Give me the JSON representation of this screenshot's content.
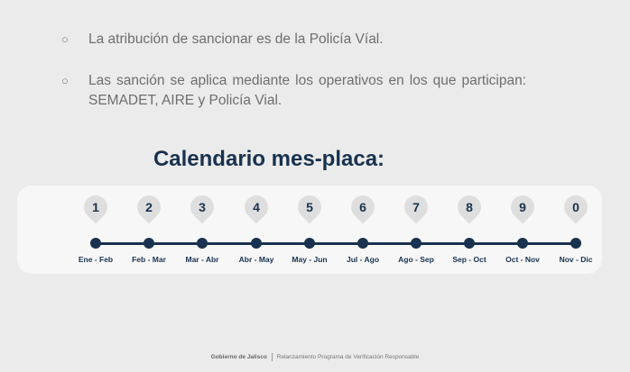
{
  "bullets": [
    {
      "marker": "○",
      "text": "La atribución de sancionar es de la Policía Víal."
    },
    {
      "marker": "○",
      "text": "Las sanción se aplica mediante los operativos en los que participan: SEMADET, AIRE y Policía Vial."
    }
  ],
  "title": "Calendario mes-placa:",
  "calendar": [
    {
      "digit": "1",
      "months": "Ene - Feb"
    },
    {
      "digit": "2",
      "months": "Feb - Mar"
    },
    {
      "digit": "3",
      "months": "Mar - Abr"
    },
    {
      "digit": "4",
      "months": "Abr - May"
    },
    {
      "digit": "5",
      "months": "May - Jun"
    },
    {
      "digit": "6",
      "months": "Jul - Ago"
    },
    {
      "digit": "7",
      "months": "Ago - Sep"
    },
    {
      "digit": "8",
      "months": "Sep - Oct"
    },
    {
      "digit": "9",
      "months": "Oct - Nov"
    },
    {
      "digit": "0",
      "months": "Nov - Dic"
    }
  ],
  "footer": {
    "brand": "Gobierno de Jalisco",
    "program": "Relanzamiento Programa de Verificación Responsable"
  },
  "colors": {
    "accent": "#18324f",
    "pin": "#dedede",
    "background": "#ebebeb"
  }
}
